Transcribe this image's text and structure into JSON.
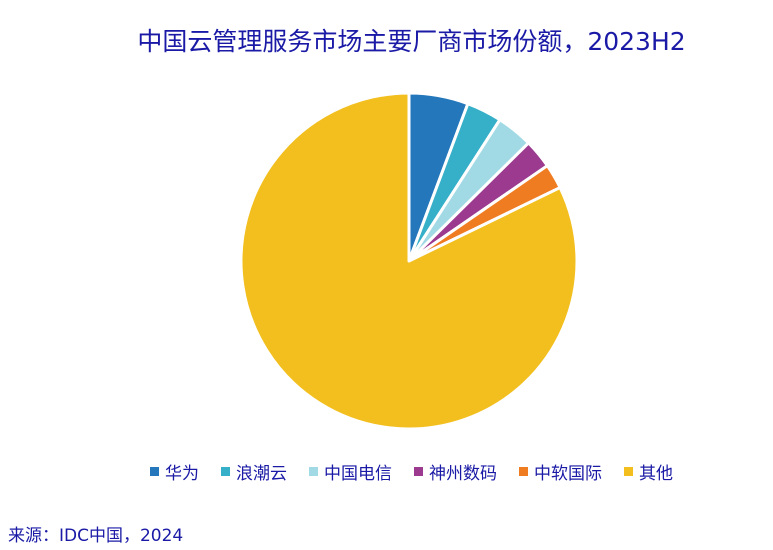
{
  "chart_data": {
    "type": "pie",
    "title": "中国云管理服务市场主要厂商市场份额，2023H2",
    "categories": [
      "华为",
      "浪潮云",
      "中国电信",
      "神州数码",
      "中软国际",
      "其他"
    ],
    "values": [
      5.7,
      3.4,
      3.5,
      2.8,
      2.4,
      82.2
    ],
    "unit": "%",
    "colors": [
      "#2477bb",
      "#36afc8",
      "#a1dae5",
      "#9b3a8e",
      "#f07c22",
      "#f2bf1f"
    ],
    "legend_position": "bottom",
    "start_angle": "top, clockwise"
  },
  "source": "来源：IDC中国，2024"
}
